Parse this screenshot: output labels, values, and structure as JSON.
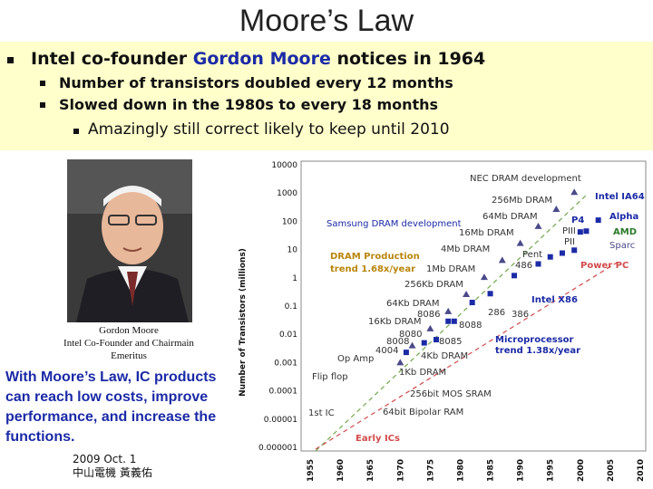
{
  "slide": {
    "title": "Moore’s Law",
    "line1_pre": "Intel co-founder ",
    "line1_name": "Gordon Moore",
    "line1_post": " notices in 1964",
    "sub1": "Number of transistors doubled every 12 months",
    "sub2": "Slowed down in the 1980s to every 18 months",
    "sub3": "Amazingly still correct likely to keep until 2010",
    "caption_name": "Gordon Moore",
    "caption_role": "Intel Co-Founder and Chairmain",
    "caption_role2": "Emeritus",
    "note": "With Moore’s Law, IC products can reach low costs, improve performance, and increase the functions.",
    "date": "2009 Oct. 1",
    "author": "中山電機 黃義佑",
    "accent_color": "#1b2aa6",
    "band_color": "#ffffcc"
  },
  "chart_data": {
    "type": "scatter",
    "ylabel": "Number of Transistors (millions)",
    "yscale": "log",
    "ylim": [
      1e-06,
      10000
    ],
    "yticks": [
      "10000",
      "1000",
      "100",
      "10",
      "1",
      "0.1",
      "0.01",
      "0.001",
      "0.0001",
      "0.00001",
      "0.000001"
    ],
    "xlim": [
      1955,
      2010
    ],
    "xticks": [
      "1955",
      "1960",
      "1965",
      "1970",
      "1975",
      "1980",
      "1985",
      "1990",
      "1995",
      "2000",
      "2005",
      "2010"
    ],
    "labels": {
      "nec": "NEC DRAM development",
      "intel_ia64": "Intel IA64",
      "d256mb": "256Mb DRAM",
      "d64mb": "64Mb DRAM",
      "p4": "P4",
      "alpha": "Alpha",
      "samsung": "Samsung DRAM development",
      "piii": "PIII",
      "amd": "AMD",
      "d16mb": "16Mb DRAM",
      "pii": "PII",
      "sparc": "Sparc",
      "dram_prod": "DRAM Production",
      "dram_trend": "trend 1.68x/year",
      "d4mb": "4Mb DRAM",
      "pent": "Pent",
      "i486": "486",
      "powerpc": "Power PC",
      "d1mb": "1Mb DRAM",
      "d256kb": "256Kb DRAM",
      "intel_x86": "Intel X86",
      "d64kb": "64Kb DRAM",
      "i286": "286",
      "i386": "386",
      "i8086": "8086",
      "d16kb": "16Kb DRAM",
      "i8088": "8088",
      "i8080": "8080",
      "i8008": "8008",
      "i8085": "8085",
      "i4004": "4004",
      "d4kb": "4Kb DRAM",
      "opamp": "Op Amp",
      "micro": "Microprocessor",
      "micro_trend": "trend 1.38x/year",
      "flipflop": "Flip flop",
      "d1kb": "1Kb DRAM",
      "sram": "256bit MOS SRAM",
      "ic1": "1st IC",
      "bipolar": "64bit Bipolar RAM",
      "early": "Early ICs"
    },
    "series": [
      {
        "marker": "square",
        "color": "#1b2aa6",
        "points": [
          [
            1971,
            0.0023
          ],
          [
            1974,
            0.005
          ],
          [
            1976,
            0.0065
          ],
          [
            1978,
            0.029
          ],
          [
            1979,
            0.029
          ],
          [
            1982,
            0.134
          ],
          [
            1985,
            0.275
          ],
          [
            1989,
            1.2
          ],
          [
            1993,
            3.1
          ],
          [
            1995,
            5.5
          ],
          [
            1997,
            7.5
          ],
          [
            1999,
            9.5
          ],
          [
            2000,
            42
          ],
          [
            2001,
            45
          ],
          [
            2003,
            110
          ]
        ]
      },
      {
        "marker": "triangle",
        "color": "#4a4a8a",
        "points": [
          [
            1970,
            0.001
          ],
          [
            1972,
            0.004
          ],
          [
            1975,
            0.016
          ],
          [
            1978,
            0.065
          ],
          [
            1981,
            0.262
          ],
          [
            1984,
            1.05
          ],
          [
            1987,
            4.2
          ],
          [
            1990,
            16.8
          ],
          [
            1993,
            67
          ],
          [
            1996,
            268
          ],
          [
            1999,
            1070
          ]
        ]
      }
    ]
  }
}
